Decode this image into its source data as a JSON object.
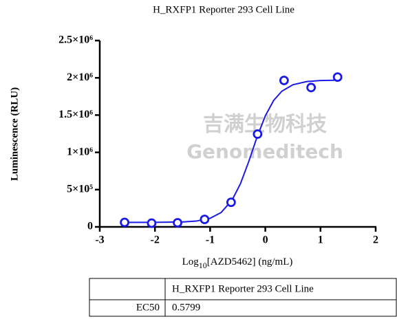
{
  "chart_data": {
    "type": "scatter",
    "title": "H_RXFP1 Reporter 293 Cell Line",
    "xlabel": {
      "main": "Log",
      "sub": "10",
      "rest": "[AZD5462] (ng/mL)"
    },
    "ylabel": "Luminescence (RLU)",
    "color": "#1a1ae6",
    "points": {
      "x": [
        -2.55,
        -2.06,
        -1.59,
        -1.1,
        -0.62,
        -0.14,
        0.34,
        0.83,
        1.31
      ],
      "values": [
        60000,
        50000,
        55000,
        100000,
        330000,
        1245000,
        1965000,
        1870000,
        2010000
      ]
    },
    "curve": {
      "x": [
        -2.55,
        -2,
        -1.5,
        -1.25,
        -1,
        -0.8,
        -0.6,
        -0.45,
        -0.3,
        -0.15,
        0,
        0.15,
        0.3,
        0.5,
        0.75,
        1,
        1.31
      ],
      "values": [
        60000,
        60600,
        65700,
        77900,
        115200,
        193000,
        362000,
        580000,
        877000,
        1204000,
        1490000,
        1695000,
        1821000,
        1907000,
        1950000,
        1964000,
        1968000
      ]
    },
    "xlim": [
      -3,
      2
    ],
    "xticks": [
      -3,
      -2,
      -1,
      0,
      1,
      2
    ],
    "ylim": [
      0,
      2500000
    ],
    "yticks": [
      0,
      {
        "value": 500000,
        "label": "5×10⁵"
      },
      {
        "value": 1000000,
        "label": "1×10⁶"
      },
      {
        "value": 1500000,
        "label": "1.5×10⁶"
      },
      {
        "value": 2000000,
        "label": "2×10⁶"
      },
      {
        "value": 2500000,
        "label": "2.5×10⁶"
      }
    ],
    "grid": false,
    "watermark": {
      "cn": "吉满生物科技",
      "en": "Genomeditech"
    }
  },
  "table": {
    "header": "H_RXFP1 Reporter 293 Cell Line",
    "rows": [
      [
        "EC50",
        "0.5799"
      ]
    ]
  }
}
